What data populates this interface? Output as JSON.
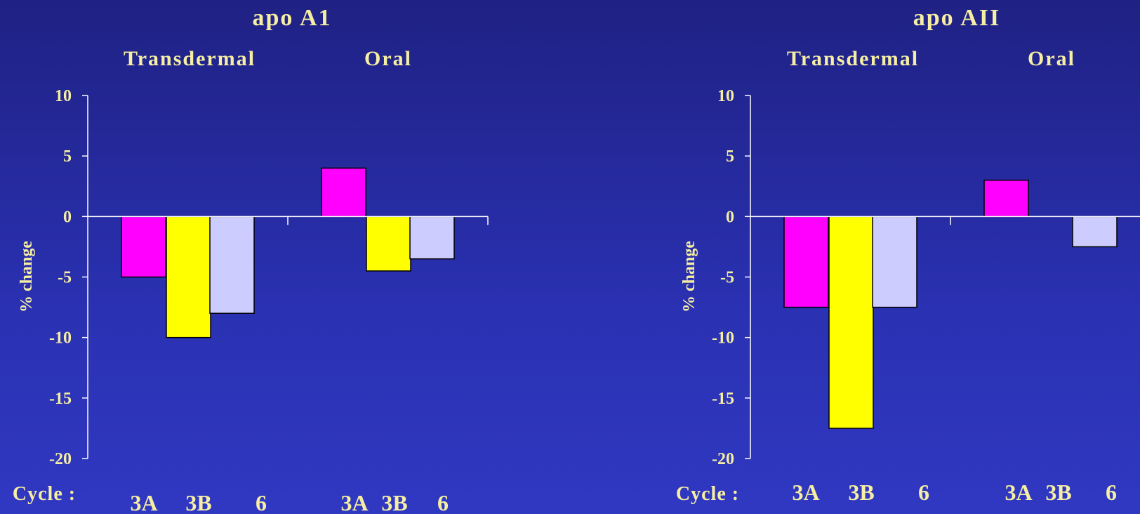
{
  "chart_data": [
    {
      "type": "bar",
      "title": "apo A1",
      "ylabel": "% change",
      "xlabel_prefix": "Cycle :",
      "ylim": [
        -20,
        10
      ],
      "yticks": [
        10,
        5,
        0,
        -5,
        -10,
        -15,
        -20
      ],
      "groups": [
        {
          "label": "Transdermal",
          "categories": [
            "3A",
            "3B",
            "6"
          ],
          "values": [
            -5,
            -10,
            -8
          ]
        },
        {
          "label": "Oral",
          "categories": [
            "3A",
            "3B",
            "6"
          ],
          "values": [
            4,
            -4.5,
            -3.5
          ]
        }
      ],
      "colors": [
        "#ff00ff",
        "#ffff00",
        "#ccccff"
      ]
    },
    {
      "type": "bar",
      "title": "apo AII",
      "ylabel": "% change",
      "xlabel_prefix": "Cycle :",
      "ylim": [
        -20,
        10
      ],
      "yticks": [
        10,
        5,
        0,
        -5,
        -10,
        -15,
        -20
      ],
      "groups": [
        {
          "label": "Transdermal",
          "categories": [
            "3A",
            "3B",
            "6"
          ],
          "values": [
            -7.5,
            -17.5,
            -7.5
          ]
        },
        {
          "label": "Oral",
          "categories": [
            "3A",
            "3B",
            "6"
          ],
          "values": [
            3,
            0,
            -2.5
          ]
        }
      ],
      "colors": [
        "#ff00ff",
        "#ffff00",
        "#ccccff"
      ]
    }
  ]
}
